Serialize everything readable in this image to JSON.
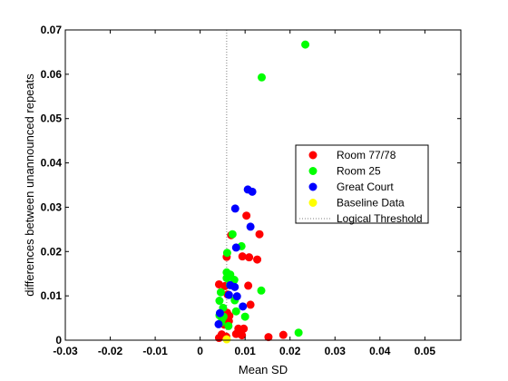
{
  "chart_data": {
    "type": "scatter",
    "xlabel": "Mean SD",
    "ylabel": "differences between unannounced repeats",
    "xlim": [
      -0.03,
      0.058
    ],
    "ylim": [
      0,
      0.07
    ],
    "xticks": [
      "-0.03",
      "-0.02",
      "-0.01",
      "0",
      "0.01",
      "0.02",
      "0.03",
      "0.04",
      "0.05"
    ],
    "yticks": [
      "0",
      "0.01",
      "0.02",
      "0.03",
      "0.04",
      "0.05",
      "0.06",
      "0.07"
    ],
    "xtick_values": [
      -0.03,
      -0.02,
      -0.01,
      0,
      0.01,
      0.02,
      0.03,
      0.04,
      0.05
    ],
    "ytick_values": [
      0,
      0.01,
      0.02,
      0.03,
      0.04,
      0.05,
      0.06,
      0.07
    ],
    "legend_placement": "right",
    "grid": false,
    "threshold": {
      "name": "Logical Threshold",
      "x": 0.0059,
      "color": "#808080"
    },
    "series": [
      {
        "name": "Room 77/78",
        "color": "#ff0000",
        "points": [
          [
            0.0103,
            0.0281
          ],
          [
            0.0132,
            0.0239
          ],
          [
            0.0069,
            0.0237
          ],
          [
            0.0059,
            0.0188
          ],
          [
            0.0094,
            0.0189
          ],
          [
            0.0109,
            0.0187
          ],
          [
            0.0127,
            0.0182
          ],
          [
            0.0042,
            0.0126
          ],
          [
            0.0055,
            0.0122
          ],
          [
            0.0107,
            0.0123
          ],
          [
            0.0061,
            0.0103
          ],
          [
            0.0112,
            0.008
          ],
          [
            0.006,
            0.0062
          ],
          [
            0.0065,
            0.0055
          ],
          [
            0.0064,
            0.0043
          ],
          [
            0.0054,
            0.0035
          ],
          [
            0.0085,
            0.0026
          ],
          [
            0.0097,
            0.0026
          ],
          [
            0.008,
            0.0014
          ],
          [
            0.0048,
            0.0013
          ],
          [
            0.0058,
            0.0008
          ],
          [
            0.0093,
            0.0011
          ],
          [
            0.0042,
            0.0005
          ],
          [
            0.0152,
            0.0007
          ],
          [
            0.0185,
            0.0012
          ]
        ]
      },
      {
        "name": "Room 25",
        "color": "#00ff00",
        "points": [
          [
            0.0234,
            0.0667
          ],
          [
            0.0137,
            0.0593
          ],
          [
            0.0072,
            0.0239
          ],
          [
            0.006,
            0.0197
          ],
          [
            0.0092,
            0.0212
          ],
          [
            0.0059,
            0.0153
          ],
          [
            0.0067,
            0.0148
          ],
          [
            0.0059,
            0.014
          ],
          [
            0.0076,
            0.0136
          ],
          [
            0.0066,
            0.0125
          ],
          [
            0.0046,
            0.0108
          ],
          [
            0.0077,
            0.009
          ],
          [
            0.0043,
            0.0089
          ],
          [
            0.0051,
            0.0073
          ],
          [
            0.0136,
            0.0112
          ],
          [
            0.0043,
            0.0056
          ],
          [
            0.0052,
            0.0053
          ],
          [
            0.0049,
            0.0048
          ],
          [
            0.01,
            0.0053
          ],
          [
            0.0047,
            0.004
          ],
          [
            0.0063,
            0.0032
          ],
          [
            0.0219,
            0.0017
          ],
          [
            0.008,
            0.0065
          ]
        ]
      },
      {
        "name": "Great Court",
        "color": "#0000ff",
        "points": [
          [
            0.0106,
            0.034
          ],
          [
            0.0116,
            0.0335
          ],
          [
            0.0078,
            0.0297
          ],
          [
            0.0112,
            0.0256
          ],
          [
            0.008,
            0.0209
          ],
          [
            0.0067,
            0.0124
          ],
          [
            0.0077,
            0.012
          ],
          [
            0.0064,
            0.0102
          ],
          [
            0.0082,
            0.0099
          ],
          [
            0.0095,
            0.0076
          ],
          [
            0.0044,
            0.0061
          ],
          [
            0.0041,
            0.0036
          ]
        ]
      },
      {
        "name": "Baseline Data",
        "color": "#ffff00",
        "points": [
          [
            0.0059,
            0.0002
          ]
        ]
      }
    ]
  }
}
